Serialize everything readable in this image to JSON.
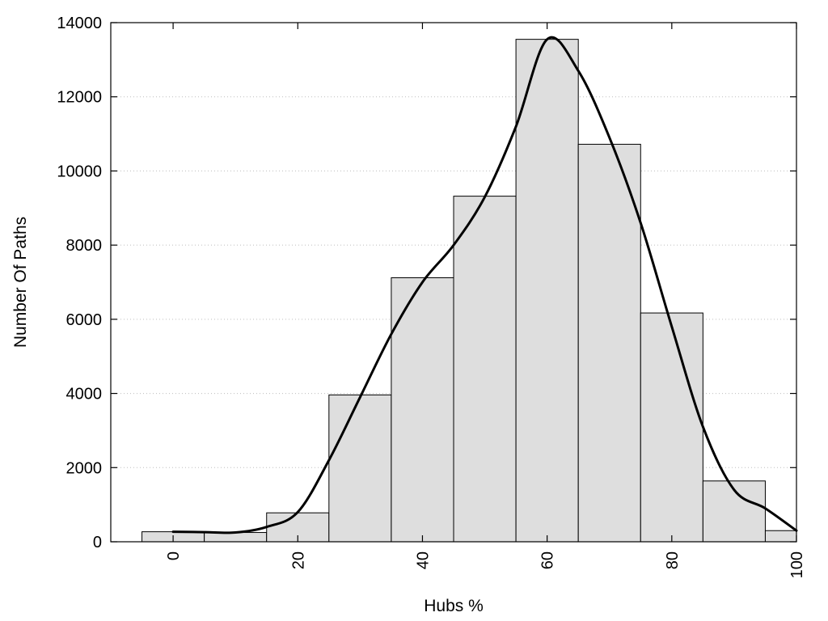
{
  "chart_data": {
    "type": "bar",
    "xlabel": "Hubs %",
    "ylabel": "Number Of Paths",
    "xlim": [
      -10,
      100
    ],
    "ylim": [
      0,
      14000
    ],
    "xticks": [
      "0",
      "20",
      "40",
      "60",
      "80",
      "100"
    ],
    "yticks": [
      "0",
      "2000",
      "4000",
      "6000",
      "8000",
      "10000",
      "12000",
      "14000"
    ],
    "grid": "horizontal dotted",
    "bin_width": 10,
    "bin_centers": [
      0,
      10,
      20,
      30,
      40,
      50,
      60,
      70,
      80,
      90,
      100
    ],
    "values": [
      270,
      250,
      780,
      3960,
      7120,
      9320,
      13550,
      10720,
      6170,
      1640,
      300
    ],
    "density_curve": {
      "x": [
        0,
        5,
        10,
        15,
        20,
        25,
        30,
        35,
        40,
        45,
        50,
        55,
        60,
        65,
        70,
        75,
        80,
        85,
        90,
        95,
        100
      ],
      "y": [
        270,
        260,
        250,
        400,
        800,
        2200,
        3900,
        5600,
        7000,
        8000,
        9300,
        11200,
        13550,
        12700,
        10900,
        8600,
        5800,
        3100,
        1400,
        900,
        300
      ]
    }
  }
}
